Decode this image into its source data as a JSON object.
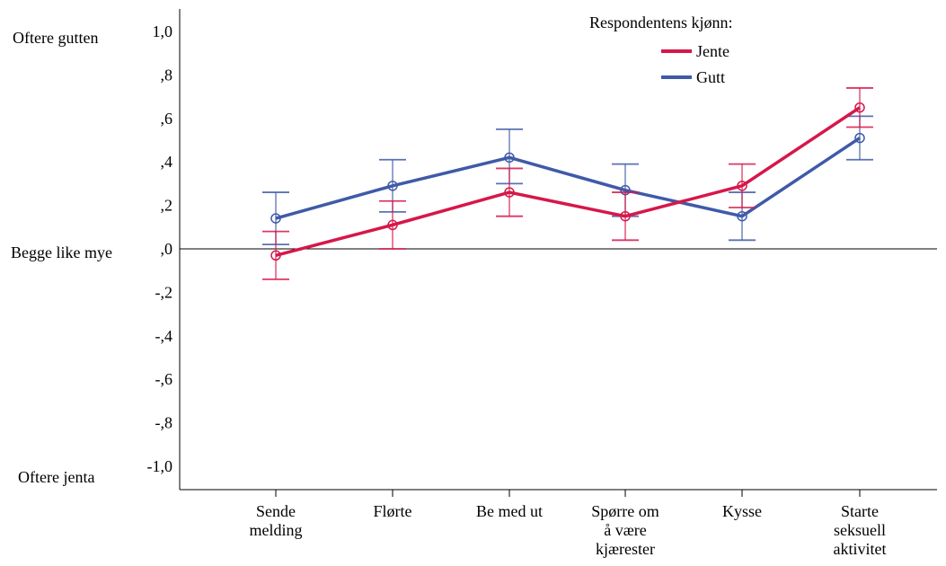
{
  "chart_data": {
    "type": "line",
    "categories": [
      [
        "Sende",
        "melding"
      ],
      [
        "Flørte"
      ],
      [
        "Be med ut"
      ],
      [
        "Spørre om",
        "å være",
        "kjærester"
      ],
      [
        "Kysse"
      ],
      [
        "Starte",
        "seksuell",
        "aktivitet"
      ]
    ],
    "y_ticks": [
      1.0,
      0.8,
      0.6,
      0.4,
      0.2,
      0.0,
      -0.2,
      -0.4,
      -0.6,
      -0.8,
      -1.0
    ],
    "y_tick_labels": [
      "1,0",
      ",8",
      ",6",
      ",4",
      ",2",
      ",0",
      "-,2",
      "-,4",
      "-,6",
      "-,8",
      "-1,0"
    ],
    "ylim": [
      -1.1,
      1.1
    ],
    "y_annotations": {
      "top": "Oftere gutten",
      "middle": "Begge like mye",
      "bottom": "Oftere jenta"
    },
    "legend": {
      "title": "Respondentens kjønn:",
      "placement": "top-right"
    },
    "zero_line": true,
    "grid": false,
    "series": [
      {
        "name": "Jente",
        "color": "#d6174a",
        "values": [
          -0.03,
          0.11,
          0.26,
          0.15,
          0.29,
          0.65
        ],
        "ci_low": [
          -0.14,
          0.0,
          0.15,
          0.04,
          0.19,
          0.56
        ],
        "ci_high": [
          0.08,
          0.22,
          0.37,
          0.26,
          0.39,
          0.74
        ]
      },
      {
        "name": "Gutt",
        "color": "#3f5aa8",
        "values": [
          0.14,
          0.29,
          0.42,
          0.27,
          0.15,
          0.51
        ],
        "ci_low": [
          0.02,
          0.17,
          0.3,
          0.15,
          0.04,
          0.41
        ],
        "ci_high": [
          0.26,
          0.41,
          0.55,
          0.39,
          0.26,
          0.61
        ]
      }
    ]
  }
}
